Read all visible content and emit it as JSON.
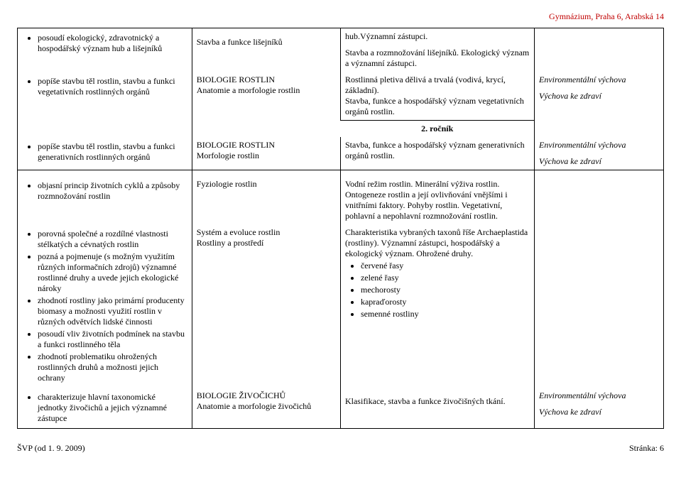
{
  "header": {
    "school": "Gymnázium, Praha 6, Arabská 14"
  },
  "grade_label": "2. ročník",
  "rows": {
    "r0": {
      "col2": "Stavba a funkce lišejníků",
      "col3a": "hub.Významní zástupci.",
      "col3b": "Stavba a rozmnožování lišejníků. Ekologický význam a významní zástupci."
    },
    "r1": {
      "col1": "posoudí ekologický, zdravotnický a hospodářský význam hub a lišejníků"
    },
    "r2": {
      "col1": "popíše stavbu těl rostlin, stavbu a funkci vegetativních rostlinných orgánů",
      "col2a": "BIOLOGIE ROSTLIN",
      "col2b": "Anatomie a morfologie rostlin",
      "col3": "Rostlinná pletiva dělivá a trvalá (vodivá, krycí, základní).\nStavba, funkce a hospodářský význam vegetativních orgánů rostlin.",
      "col4a": "Environmentální výchova",
      "col4b": "Výchova ke zdraví"
    },
    "r3": {
      "col1": "popíše stavbu těl rostlin, stavbu a funkci generativních rostlinných orgánů",
      "col2a": "BIOLOGIE ROSTLIN",
      "col2b": "Morfologie rostlin",
      "col3": "Stavba, funkce a hospodářský význam generativních orgánů rostlin.",
      "col4a": "Environmentální výchova",
      "col4b": "Výchova ke zdraví"
    },
    "r4": {
      "col1": "objasní princip životních cyklů a způsoby rozmnožování rostlin",
      "col2": "Fyziologie rostlin",
      "col3": "Vodní režim rostlin. Minerální výživa rostlin. Ontogeneze  rostlin a její ovlivňování vnějšími i vnitřními faktory. Pohyby rostlin. Vegetativní, pohlavní a nepohlavní rozmnožování rostlin."
    },
    "r5": {
      "col1": [
        "porovná společné a rozdílné vlastnosti stélkatých a cévnatých rostlin",
        "pozná a pojmenuje (s možným využitím různých informačních zdrojů) významné rostlinné druhy a uvede jejich ekologické nároky",
        "zhodnotí rostliny jako primární producenty biomasy a možnosti využití rostlin v různých odvětvích lidské činnosti",
        "posoudí vliv životních podmínek na stavbu a funkci rostlinného těla",
        "zhodnotí problematiku ohrožených rostlinných druhů a možnosti jejich ochrany"
      ],
      "col2a": "Systém a evoluce rostlin",
      "col2b": "Rostliny a prostředí",
      "col3_intro": "Charakteristika vybraných taxonů říše Archaeplastida (rostliny). Významní zástupci, hospodářský a ekologický význam. Ohrožené druhy.",
      "col3_list": [
        "červené řasy",
        "zelené řasy",
        "mechorosty",
        "kapraďorosty",
        "semenné rostliny"
      ]
    },
    "r6": {
      "col1": "charakterizuje hlavní taxonomické jednotky živočichů a jejich významné zástupce",
      "col2a": "BIOLOGIE ŽIVOČICHŮ",
      "col2b": "Anatomie a morfologie živočichů",
      "col3": "Klasifikace, stavba a funkce živočišných tkání.",
      "col4a": "Environmentální výchova",
      "col4b": "Výchova ke zdraví"
    }
  },
  "footer": {
    "left": "ŠVP (od 1. 9. 2009)",
    "right": "Stránka: 6"
  }
}
